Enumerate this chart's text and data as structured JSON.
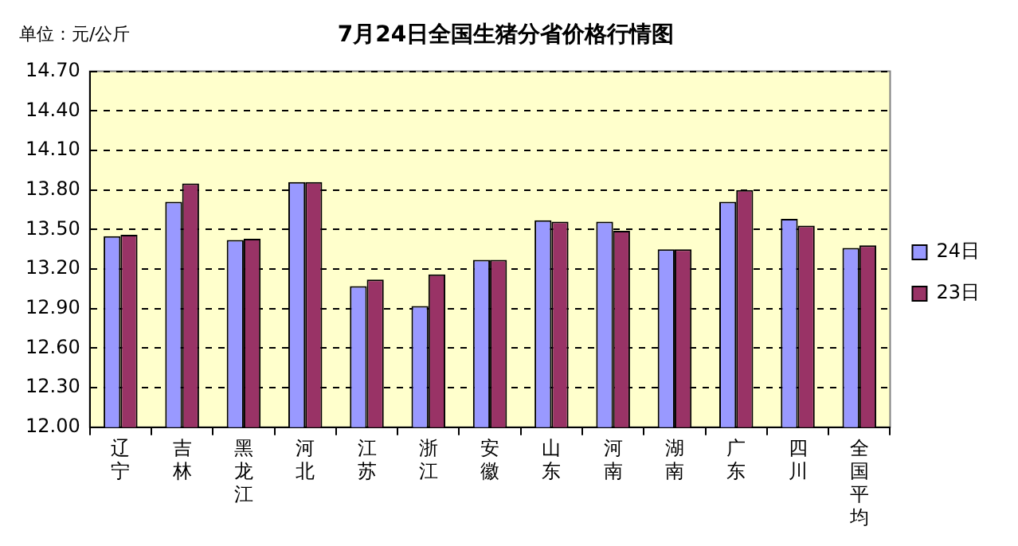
{
  "chart_data": {
    "type": "bar",
    "title": "7月24日全国生猪分省价格行情图",
    "ylabel": "单位：元/公斤",
    "categories": [
      "辽宁",
      "吉林",
      "黑龙江",
      "河北",
      "江苏",
      "浙江",
      "安徽",
      "山东",
      "河南",
      "湖南",
      "广东",
      "四川",
      "全国平均"
    ],
    "series": [
      {
        "name": "24日",
        "color": "#9999ff",
        "values": [
          13.45,
          13.71,
          13.42,
          13.86,
          13.07,
          12.92,
          13.27,
          13.57,
          13.56,
          13.35,
          13.71,
          13.58,
          13.36
        ]
      },
      {
        "name": "23日",
        "color": "#993366",
        "values": [
          13.46,
          13.85,
          13.43,
          13.86,
          13.12,
          13.16,
          13.27,
          13.56,
          13.49,
          13.35,
          13.8,
          13.53,
          13.38
        ]
      }
    ],
    "ylim": [
      12.0,
      14.7
    ],
    "yticks": [
      {
        "value": 12.0,
        "label": "12.00"
      },
      {
        "value": 12.3,
        "label": "12.30"
      },
      {
        "value": 12.6,
        "label": "12.60"
      },
      {
        "value": 12.9,
        "label": "12.90"
      },
      {
        "value": 13.2,
        "label": "13.20"
      },
      {
        "value": 13.5,
        "label": "13.50"
      },
      {
        "value": 13.8,
        "label": "13.80"
      },
      {
        "value": 14.1,
        "label": "14.10"
      },
      {
        "value": 14.4,
        "label": "14.40"
      },
      {
        "value": 14.7,
        "label": "14.70"
      }
    ],
    "grid": "y",
    "legend": "right"
  }
}
